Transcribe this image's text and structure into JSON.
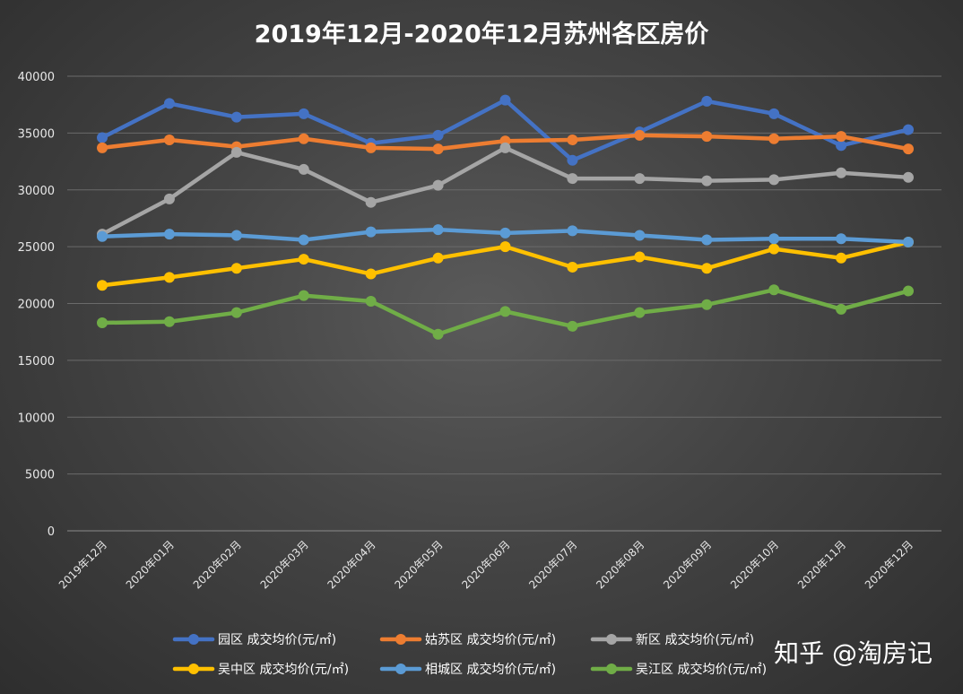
{
  "chart_data": {
    "type": "line",
    "title": "2019年12月-2020年12月苏州各区房价",
    "xlabel": "",
    "ylabel": "",
    "ylim": [
      0,
      40000
    ],
    "yticks": [
      0,
      5000,
      10000,
      15000,
      20000,
      25000,
      30000,
      35000,
      40000
    ],
    "grid": true,
    "legend_position": "bottom",
    "categories": [
      "2019年12月",
      "2020年01月",
      "2020年02月",
      "2020年03月",
      "2020年04月",
      "2020年05月",
      "2020年06月",
      "2020年07月",
      "2020年08月",
      "2020年09月",
      "2020年10月",
      "2020年11月",
      "2020年12月"
    ],
    "series": [
      {
        "name": "园区 成交均价(元/㎡)",
        "color": "#4472c4",
        "values": [
          34600,
          37600,
          36400,
          36700,
          34100,
          34800,
          37900,
          32600,
          35100,
          37800,
          36700,
          33900,
          35300
        ]
      },
      {
        "name": "姑苏区 成交均价(元/㎡)",
        "color": "#ed7d31",
        "values": [
          33700,
          34400,
          33800,
          34500,
          33700,
          33600,
          34300,
          34400,
          34800,
          34700,
          34500,
          34700,
          33600
        ]
      },
      {
        "name": "新区 成交均价(元/㎡)",
        "color": "#a5a5a5",
        "values": [
          26100,
          29200,
          33300,
          31800,
          28900,
          30400,
          33700,
          31000,
          31000,
          30800,
          30900,
          31500,
          31100
        ]
      },
      {
        "name": "吴中区 成交均价(元/㎡)",
        "color": "#ffc000",
        "values": [
          21600,
          22300,
          23100,
          23900,
          22600,
          24000,
          25000,
          23200,
          24100,
          23100,
          24800,
          24000,
          25400
        ]
      },
      {
        "name": "相城区 成交均价(元/㎡)",
        "color": "#5b9bd5",
        "values": [
          25900,
          26100,
          26000,
          25600,
          26300,
          26500,
          26200,
          26400,
          26000,
          25600,
          25700,
          25700,
          25400
        ]
      },
      {
        "name": "吴江区 成交均价(元/㎡)",
        "color": "#70ad47",
        "values": [
          18300,
          18400,
          19200,
          20700,
          20200,
          17300,
          19300,
          18000,
          19200,
          19900,
          21200,
          19500,
          21100
        ]
      }
    ]
  },
  "watermark": {
    "text": "知乎 @淘房记"
  }
}
